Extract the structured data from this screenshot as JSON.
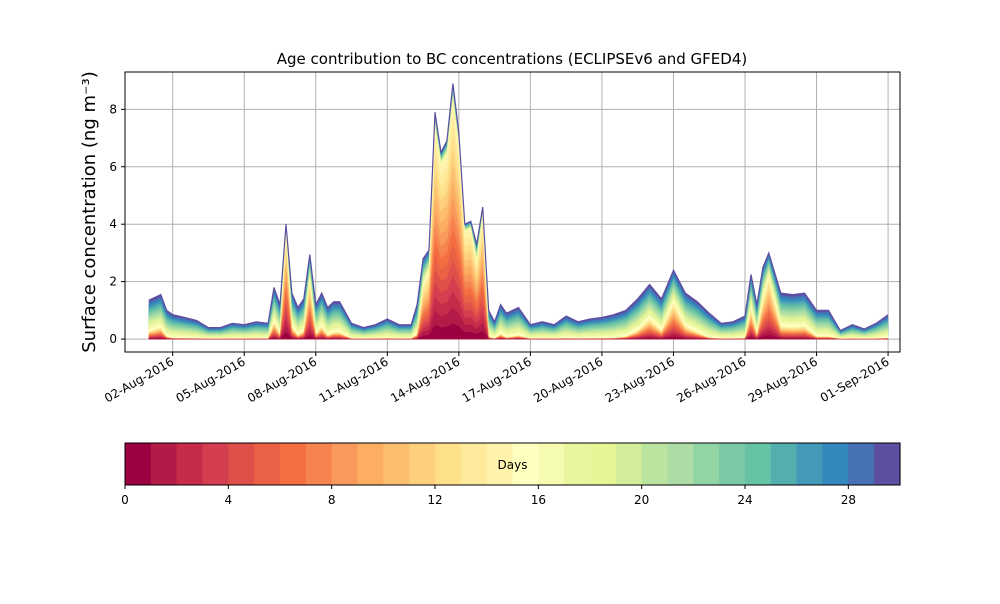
{
  "chart_data": [
    {
      "type": "area",
      "stacked": true,
      "title": "Age contribution to BC concentrations (ECLIPSEv6 and GFED4)",
      "ylabel": "Surface concentration (ng m⁻³)",
      "xlabel": "",
      "grid": true,
      "ylim": [
        -0.45,
        9.3
      ],
      "xlim": [
        "2016-07-31T00:00",
        "2016-09-01T12:00"
      ],
      "x_tick_labels": [
        "02-Aug-2016",
        "05-Aug-2016",
        "08-Aug-2016",
        "11-Aug-2016",
        "14-Aug-2016",
        "17-Aug-2016",
        "20-Aug-2016",
        "23-Aug-2016",
        "26-Aug-2016",
        "29-Aug-2016",
        "01-Sep-2016"
      ],
      "x_tick_values": [
        "2016-08-02",
        "2016-08-05",
        "2016-08-08",
        "2016-08-11",
        "2016-08-14",
        "2016-08-17",
        "2016-08-20",
        "2016-08-23",
        "2016-08-26",
        "2016-08-29",
        "2016-09-01"
      ],
      "y_ticks": [
        0,
        2,
        4,
        6,
        8
      ],
      "series_note_legend": "Days",
      "total": {
        "x": [
          "2016-08-01T00:00",
          "2016-08-01T06:00",
          "2016-08-01T12:00",
          "2016-08-01T18:00",
          "2016-08-02T00:00",
          "2016-08-02T12:00",
          "2016-08-03T00:00",
          "2016-08-03T12:00",
          "2016-08-04T00:00",
          "2016-08-04T12:00",
          "2016-08-05T00:00",
          "2016-08-05T12:00",
          "2016-08-06T00:00",
          "2016-08-06T06:00",
          "2016-08-06T12:00",
          "2016-08-06T18:00",
          "2016-08-07T00:00",
          "2016-08-07T06:00",
          "2016-08-07T12:00",
          "2016-08-07T18:00",
          "2016-08-08T00:00",
          "2016-08-08T06:00",
          "2016-08-08T12:00",
          "2016-08-08T18:00",
          "2016-08-09T00:00",
          "2016-08-09T12:00",
          "2016-08-10T00:00",
          "2016-08-10T12:00",
          "2016-08-11T00:00",
          "2016-08-11T12:00",
          "2016-08-12T00:00",
          "2016-08-12T06:00",
          "2016-08-12T12:00",
          "2016-08-12T18:00",
          "2016-08-13T00:00",
          "2016-08-13T06:00",
          "2016-08-13T12:00",
          "2016-08-13T18:00",
          "2016-08-14T00:00",
          "2016-08-14T06:00",
          "2016-08-14T12:00",
          "2016-08-14T18:00",
          "2016-08-15T00:00",
          "2016-08-15T06:00",
          "2016-08-15T12:00",
          "2016-08-15T18:00",
          "2016-08-16T00:00",
          "2016-08-16T12:00",
          "2016-08-17T00:00",
          "2016-08-17T12:00",
          "2016-08-18T00:00",
          "2016-08-18T12:00",
          "2016-08-19T00:00",
          "2016-08-19T12:00",
          "2016-08-20T00:00",
          "2016-08-20T12:00",
          "2016-08-21T00:00",
          "2016-08-21T12:00",
          "2016-08-22T00:00",
          "2016-08-22T12:00",
          "2016-08-23T00:00",
          "2016-08-23T12:00",
          "2016-08-24T00:00",
          "2016-08-24T12:00",
          "2016-08-25T00:00",
          "2016-08-25T12:00",
          "2016-08-26T00:00",
          "2016-08-26T06:00",
          "2016-08-26T12:00",
          "2016-08-26T18:00",
          "2016-08-27T00:00",
          "2016-08-27T12:00",
          "2016-08-28T00:00",
          "2016-08-28T12:00",
          "2016-08-29T00:00",
          "2016-08-29T12:00",
          "2016-08-30T00:00",
          "2016-08-30T12:00",
          "2016-08-31T00:00",
          "2016-08-31T12:00",
          "2016-09-01T00:00"
        ],
        "y": [
          1.35,
          1.45,
          1.55,
          1.0,
          0.85,
          0.75,
          0.65,
          0.4,
          0.4,
          0.55,
          0.5,
          0.6,
          0.55,
          1.8,
          1.2,
          4.0,
          1.6,
          1.1,
          1.4,
          2.95,
          1.2,
          1.6,
          1.1,
          1.3,
          1.3,
          0.55,
          0.4,
          0.5,
          0.7,
          0.5,
          0.5,
          1.2,
          2.8,
          3.1,
          7.9,
          6.5,
          6.9,
          8.9,
          7.2,
          4.0,
          4.1,
          3.3,
          4.6,
          1.0,
          0.6,
          1.2,
          0.9,
          1.1,
          0.5,
          0.6,
          0.5,
          0.8,
          0.6,
          0.7,
          0.75,
          0.85,
          1.0,
          1.4,
          1.9,
          1.4,
          2.4,
          1.6,
          1.3,
          0.9,
          0.55,
          0.6,
          0.8,
          2.25,
          1.2,
          2.5,
          3.0,
          1.6,
          1.55,
          1.6,
          1.0,
          1.0,
          0.3,
          0.5,
          0.35,
          0.55,
          0.85
        ]
      }
    },
    {
      "type": "colorbar",
      "label": "Days",
      "range": [
        0,
        30
      ],
      "bins": 30,
      "ticks": [
        0,
        4,
        8,
        12,
        16,
        20,
        24,
        28
      ],
      "colormap": "Spectral",
      "colors": [
        "#9e0142",
        "#b31a47",
        "#c72b4a",
        "#d53e4f",
        "#e0504a",
        "#ea6145",
        "#f46d43",
        "#f68350",
        "#f99a5c",
        "#fdae61",
        "#fdbf6f",
        "#fed07e",
        "#fee08b",
        "#feea9a",
        "#fff3ac",
        "#ffffbf",
        "#f6fbb2",
        "#eaf69e",
        "#e6f598",
        "#d2ed9b",
        "#bbe4a0",
        "#abdda4",
        "#93d4a4",
        "#79c9a5",
        "#66c2a5",
        "#54aead",
        "#4499b6",
        "#3288bd",
        "#4671b2",
        "#5e4fa2"
      ]
    }
  ]
}
